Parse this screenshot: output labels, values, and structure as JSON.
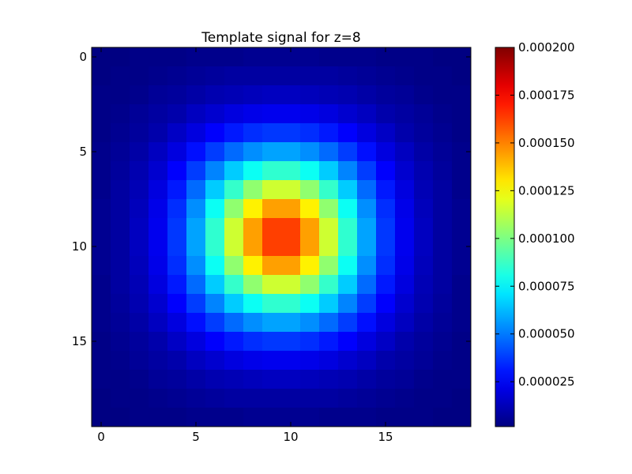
{
  "chart_data": {
    "type": "heatmap",
    "title": "Template signal for z=8",
    "xlabel": "",
    "ylabel": "",
    "grid": false,
    "colormap": "jet",
    "x_range": [
      0,
      19
    ],
    "y_range": [
      0,
      19
    ],
    "x_ticks": [
      0,
      5,
      10,
      15
    ],
    "y_ticks": [
      0,
      5,
      10,
      15
    ],
    "colorbar": {
      "range": [
        1.5e-06,
        0.0002
      ],
      "ticks": [
        2.5e-05,
        5e-05,
        7.5e-05,
        0.0001,
        0.000125,
        0.00015,
        0.000175,
        0.0002
      ],
      "tick_labels": [
        "0.000025",
        "0.000050",
        "0.000075",
        "0.000100",
        "0.000125",
        "0.000150",
        "0.000175",
        "0.000200"
      ],
      "placement": "right"
    },
    "values": [
      [
        2e-06,
        2e-06,
        3e-06,
        3e-06,
        3e-06,
        4e-06,
        4e-06,
        4e-06,
        5e-06,
        5e-06,
        5e-06,
        5e-06,
        4e-06,
        4e-06,
        4e-06,
        3e-06,
        3e-06,
        3e-06,
        2e-06,
        2e-06
      ],
      [
        2e-06,
        3e-06,
        3e-06,
        4e-06,
        5e-06,
        6e-06,
        7e-06,
        8e-06,
        8e-06,
        8e-06,
        8e-06,
        8e-06,
        8e-06,
        7e-06,
        6e-06,
        5e-06,
        4e-06,
        3e-06,
        3e-06,
        2e-06
      ],
      [
        3e-06,
        3e-06,
        4e-06,
        6e-06,
        7e-06,
        9e-06,
        1.1e-05,
        1.2e-05,
        1.3e-05,
        1.4e-05,
        1.4e-05,
        1.3e-05,
        1.2e-05,
        1.1e-05,
        9e-06,
        7e-06,
        6e-06,
        4e-06,
        3e-06,
        3e-06
      ],
      [
        3e-06,
        4e-06,
        6e-06,
        8e-06,
        1e-05,
        1.4e-05,
        1.7e-05,
        2e-05,
        2.2e-05,
        2.3e-05,
        2.3e-05,
        2.2e-05,
        2e-05,
        1.7e-05,
        1.4e-05,
        1e-05,
        8e-06,
        6e-06,
        4e-06,
        3e-06
      ],
      [
        3e-06,
        5e-06,
        7e-06,
        1e-05,
        1.5e-05,
        2e-05,
        2.6e-05,
        3.1e-05,
        3.5e-05,
        3.7e-05,
        3.7e-05,
        3.5e-05,
        3.1e-05,
        2.6e-05,
        2e-05,
        1.5e-05,
        1e-05,
        7e-06,
        5e-06,
        3e-06
      ],
      [
        4e-06,
        6e-06,
        9e-06,
        1.4e-05,
        2e-05,
        2.9e-05,
        3.8e-05,
        4.7e-05,
        5.4e-05,
        5.8e-05,
        5.8e-05,
        5.4e-05,
        4.7e-05,
        3.8e-05,
        2.9e-05,
        2e-05,
        1.4e-05,
        9e-06,
        6e-06,
        4e-06
      ],
      [
        4e-06,
        7e-06,
        1.1e-05,
        1.7e-05,
        2.6e-05,
        3.8e-05,
        5.2e-05,
        6.6e-05,
        7.8e-05,
        8.5e-05,
        8.5e-05,
        7.8e-05,
        6.6e-05,
        5.2e-05,
        3.8e-05,
        2.6e-05,
        1.7e-05,
        1.1e-05,
        7e-06,
        4e-06
      ],
      [
        4e-06,
        8e-06,
        1.2e-05,
        2e-05,
        3.1e-05,
        4.7e-05,
        6.6e-05,
        8.6e-05,
        0.000104,
        0.000116,
        0.000116,
        0.000104,
        8.6e-05,
        6.6e-05,
        4.7e-05,
        3.1e-05,
        2e-05,
        1.2e-05,
        8e-06,
        4e-06
      ],
      [
        5e-06,
        8e-06,
        1.3e-05,
        2.2e-05,
        3.5e-05,
        5.4e-05,
        7.8e-05,
        0.000104,
        0.000128,
        0.000144,
        0.000144,
        0.000128,
        0.000104,
        7.8e-05,
        5.4e-05,
        3.5e-05,
        2.2e-05,
        1.3e-05,
        8e-06,
        5e-06
      ],
      [
        5e-06,
        8e-06,
        1.4e-05,
        2.3e-05,
        3.7e-05,
        5.8e-05,
        8.5e-05,
        0.000116,
        0.000144,
        0.000163,
        0.000163,
        0.000144,
        0.000116,
        8.5e-05,
        5.8e-05,
        3.7e-05,
        2.3e-05,
        1.4e-05,
        8e-06,
        5e-06
      ],
      [
        5e-06,
        8e-06,
        1.4e-05,
        2.3e-05,
        3.7e-05,
        5.8e-05,
        8.5e-05,
        0.000116,
        0.000144,
        0.000163,
        0.000163,
        0.000144,
        0.000116,
        8.5e-05,
        5.8e-05,
        3.7e-05,
        2.3e-05,
        1.4e-05,
        8e-06,
        5e-06
      ],
      [
        5e-06,
        8e-06,
        1.3e-05,
        2.2e-05,
        3.5e-05,
        5.4e-05,
        7.8e-05,
        0.000104,
        0.000128,
        0.000144,
        0.000144,
        0.000128,
        0.000104,
        7.8e-05,
        5.4e-05,
        3.5e-05,
        2.2e-05,
        1.3e-05,
        8e-06,
        5e-06
      ],
      [
        4e-06,
        8e-06,
        1.2e-05,
        2e-05,
        3.1e-05,
        4.7e-05,
        6.6e-05,
        8.6e-05,
        0.000104,
        0.000116,
        0.000116,
        0.000104,
        8.6e-05,
        6.6e-05,
        4.7e-05,
        3.1e-05,
        2e-05,
        1.2e-05,
        8e-06,
        4e-06
      ],
      [
        4e-06,
        7e-06,
        1.1e-05,
        1.7e-05,
        2.6e-05,
        3.8e-05,
        5.2e-05,
        6.6e-05,
        7.8e-05,
        8.5e-05,
        8.5e-05,
        7.8e-05,
        6.6e-05,
        5.2e-05,
        3.8e-05,
        2.6e-05,
        1.7e-05,
        1.1e-05,
        7e-06,
        4e-06
      ],
      [
        4e-06,
        6e-06,
        9e-06,
        1.4e-05,
        2e-05,
        2.9e-05,
        3.8e-05,
        4.7e-05,
        5.4e-05,
        5.8e-05,
        5.8e-05,
        5.4e-05,
        4.7e-05,
        3.8e-05,
        2.9e-05,
        2e-05,
        1.4e-05,
        9e-06,
        6e-06,
        4e-06
      ],
      [
        3e-06,
        5e-06,
        7e-06,
        1e-05,
        1.5e-05,
        2e-05,
        2.6e-05,
        3.1e-05,
        3.5e-05,
        3.7e-05,
        3.7e-05,
        3.5e-05,
        3.1e-05,
        2.6e-05,
        2e-05,
        1.5e-05,
        1e-05,
        7e-06,
        5e-06,
        3e-06
      ],
      [
        3e-06,
        4e-06,
        6e-06,
        8e-06,
        1e-05,
        1.4e-05,
        1.7e-05,
        2e-05,
        2.2e-05,
        2.3e-05,
        2.3e-05,
        2.2e-05,
        2e-05,
        1.7e-05,
        1.4e-05,
        1e-05,
        8e-06,
        6e-06,
        4e-06,
        3e-06
      ],
      [
        3e-06,
        3e-06,
        4e-06,
        6e-06,
        7e-06,
        9e-06,
        1.1e-05,
        1.2e-05,
        1.3e-05,
        1.4e-05,
        1.4e-05,
        1.3e-05,
        1.2e-05,
        1.1e-05,
        9e-06,
        7e-06,
        6e-06,
        4e-06,
        3e-06,
        3e-06
      ],
      [
        2e-06,
        3e-06,
        3e-06,
        4e-06,
        5e-06,
        6e-06,
        7e-06,
        8e-06,
        8e-06,
        8e-06,
        8e-06,
        8e-06,
        8e-06,
        7e-06,
        6e-06,
        5e-06,
        4e-06,
        3e-06,
        3e-06,
        2e-06
      ],
      [
        2e-06,
        2e-06,
        3e-06,
        3e-06,
        3e-06,
        4e-06,
        4e-06,
        4e-06,
        5e-06,
        5e-06,
        5e-06,
        5e-06,
        4e-06,
        4e-06,
        4e-06,
        3e-06,
        3e-06,
        3e-06,
        2e-06,
        2e-06
      ]
    ]
  }
}
